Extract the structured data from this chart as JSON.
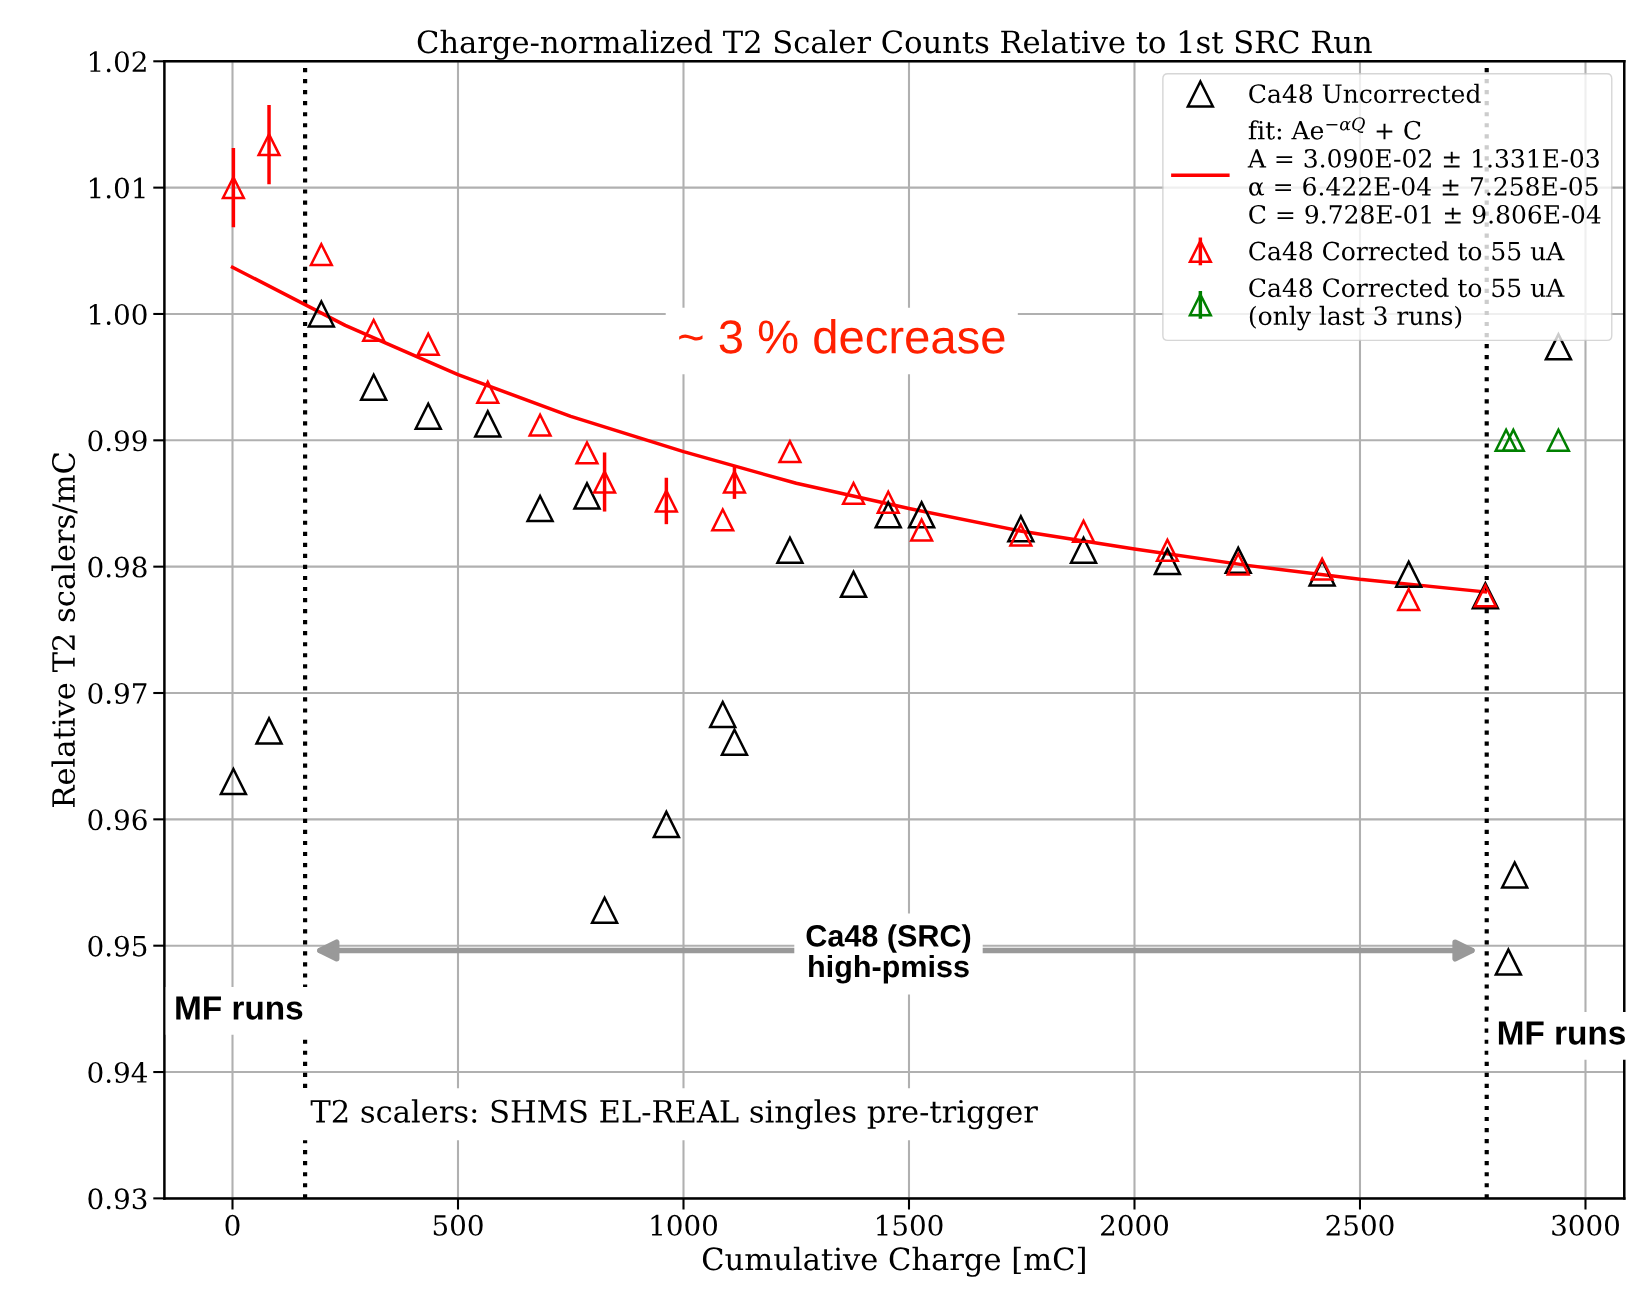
{
  "chart_data": {
    "type": "scatter",
    "title": "Charge-normalized T2 Scaler Counts Relative to 1st SRC Run",
    "xlabel": "Cumulative Charge [mC]",
    "ylabel": "Relative T2 scalers/mC",
    "series": [
      {
        "name": "Ca48 Uncorrected",
        "color": "#000000",
        "marker": "triangle",
        "x": [
          2,
          81,
          197,
          313,
          434,
          566,
          682,
          786,
          825,
          962,
          1087,
          1113,
          1236,
          1377,
          1454,
          1528,
          1748,
          1887,
          2073,
          2230,
          2416,
          2608,
          2778,
          2843,
          2829,
          2940
        ],
        "values": [
          0.963,
          0.967,
          1.0,
          0.9942,
          0.9919,
          0.9913,
          0.9846,
          0.9856,
          0.9528,
          0.9596,
          0.9683,
          0.9661,
          0.9813,
          0.9786,
          0.9841,
          0.9841,
          0.983,
          0.9813,
          0.9804,
          0.9805,
          0.9795,
          0.9794,
          0.9777,
          0.9556,
          0.9487,
          0.9974
        ]
      },
      {
        "name": "fit: Ae$^{−αQ}$ + C\nA = 3.090E-02 ± 1.331E-03\nα = 6.422E-04 ± 7.258E-05\nC = 9.728E-01 ± 9.806E-04",
        "type": "line",
        "color": "#ff0000",
        "marker": "none",
        "line_style": "solid",
        "x": [
          0,
          250,
          500,
          750,
          1000,
          1250,
          1500,
          1750,
          2000,
          2250,
          2500,
          2778
        ],
        "values": [
          1.0037,
          0.9991,
          0.9952,
          0.9919,
          0.9891,
          0.9866,
          0.9846,
          0.9828,
          0.9814,
          0.9801,
          0.979,
          0.978
        ]
      },
      {
        "name": "Ca48 Corrected to 55 uA",
        "color": "#ff0000",
        "marker": "triangle",
        "x": [
          2,
          81,
          197,
          313,
          434,
          566,
          682,
          786,
          825,
          962,
          1087,
          1113,
          1236,
          1377,
          1454,
          1528,
          1748,
          1887,
          2073,
          2230,
          2416,
          2608,
          2778
        ],
        "values": [
          1.01,
          1.0134,
          1.0047,
          0.9987,
          0.9976,
          0.9938,
          0.9912,
          0.989,
          0.9867,
          0.9852,
          0.9837,
          0.9867,
          0.9891,
          0.9858,
          0.9851,
          0.9829,
          0.9825,
          0.9828,
          0.9813,
          0.9802,
          0.9798,
          0.9774,
          0.9777
        ],
        "errors": [
          0.003,
          0.003,
          null,
          null,
          null,
          null,
          null,
          null,
          0.0022,
          0.0017,
          null,
          0.0012,
          null,
          null,
          null,
          null,
          null,
          null,
          null,
          null,
          null,
          null,
          null
        ]
      },
      {
        "name": "Ca48 Corrected to 55 uA\n(only last 3 runs)",
        "color": "#008000",
        "marker": "triangle",
        "x": [
          2824,
          2840,
          2940
        ],
        "values": [
          0.99,
          0.99,
          0.99
        ],
        "errors": [
          null,
          null,
          null
        ]
      }
    ],
    "ref_lines": [
      {
        "axis": "x",
        "value": 161,
        "label": "MF runs",
        "color": "#000000",
        "line_style": "dotted"
      },
      {
        "axis": "x",
        "value": 2781,
        "label": "MF runs",
        "color": "#000000",
        "line_style": "dotted"
      }
    ],
    "annotations": [
      "~ 3 % decrease",
      "Ca48 (SRC)\nhigh-pmiss",
      "T2 scalers: SHMS EL-REAL singles pre-trigger"
    ],
    "xlim": [
      -151,
      3086
    ],
    "ylim": [
      0.93,
      1.02
    ],
    "xticks": [
      0,
      500,
      1000,
      1500,
      2000,
      2500,
      3000
    ],
    "yticks": [
      0.93,
      0.94,
      0.95,
      0.96,
      0.97,
      0.98,
      0.99,
      {
        "value": 1.0,
        "label": "1.00"
      },
      1.01,
      1.02
    ],
    "grid": true,
    "legend": "top right"
  }
}
